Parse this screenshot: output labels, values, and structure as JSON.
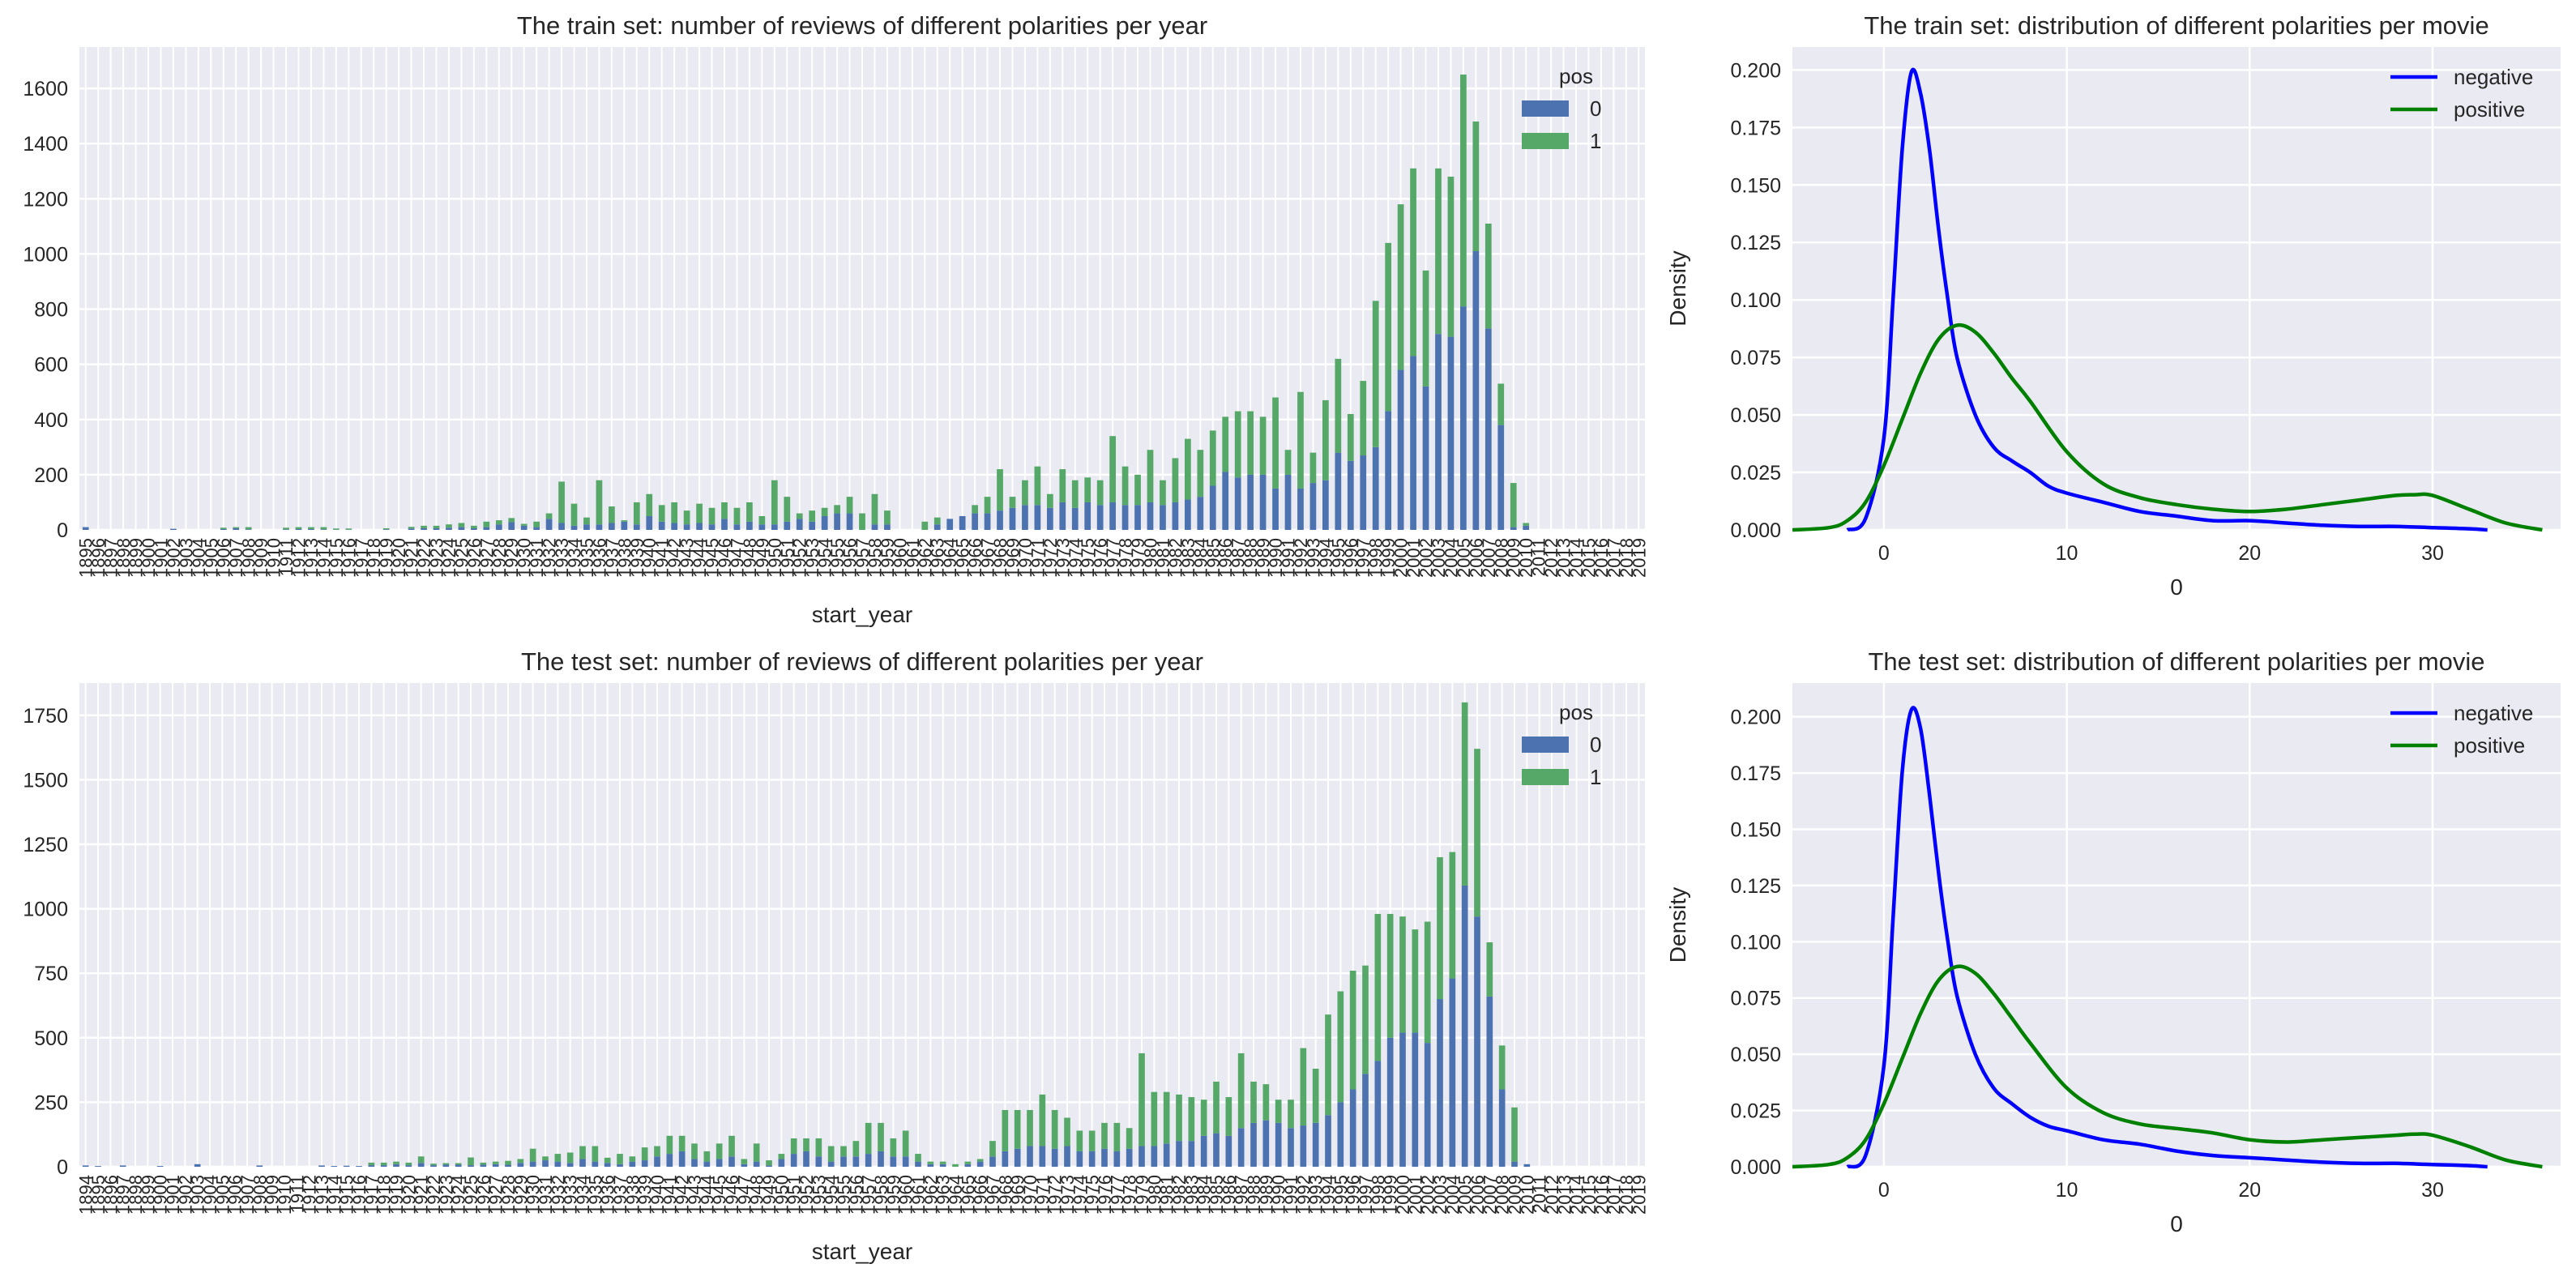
{
  "colors": {
    "neg_bar": "#4c72b0",
    "pos_bar": "#55a868",
    "neg_line": "#0000ff",
    "pos_line": "#008000",
    "panel_bg": "#eaeaf2",
    "grid": "#ffffff"
  },
  "chart_data": [
    {
      "type": "bar",
      "stacked": true,
      "title": "The train set: number of reviews of different polarities per year",
      "xlabel": "start_year",
      "ylabel": "",
      "ylim": [
        0,
        1750
      ],
      "yticks": [
        0,
        200,
        400,
        600,
        800,
        1000,
        1200,
        1400,
        1600
      ],
      "legend": {
        "title": "pos",
        "position": "top-right",
        "labels": [
          "0",
          "1"
        ]
      },
      "grid": true,
      "categories": [
        "1895",
        "1896",
        "1897",
        "1898",
        "1899",
        "1900",
        "1901",
        "1902",
        "1903",
        "1904",
        "1905",
        "1906",
        "1907",
        "1908",
        "1909",
        "1910",
        "1911",
        "1912",
        "1913",
        "1914",
        "1915",
        "1916",
        "1917",
        "1918",
        "1919",
        "1920",
        "1921",
        "1922",
        "1923",
        "1924",
        "1925",
        "1926",
        "1927",
        "1928",
        "1929",
        "1930",
        "1931",
        "1932",
        "1933",
        "1934",
        "1935",
        "1936",
        "1937",
        "1938",
        "1939",
        "1940",
        "1941",
        "1942",
        "1943",
        "1944",
        "1945",
        "1946",
        "1947",
        "1948",
        "1949",
        "1950",
        "1951",
        "1952",
        "1953",
        "1954",
        "1955",
        "1956",
        "1957",
        "1958",
        "1959",
        "1960",
        "1961",
        "1962",
        "1963",
        "1964",
        "1965",
        "1966",
        "1967",
        "1968",
        "1969",
        "1970",
        "1971",
        "1972",
        "1973",
        "1974",
        "1975",
        "1976",
        "1977",
        "1978",
        "1979",
        "1980",
        "1981",
        "1982",
        "1983",
        "1984",
        "1985",
        "1986",
        "1987",
        "1988",
        "1989",
        "1990",
        "1991",
        "1992",
        "1993",
        "1994",
        "1995",
        "1996",
        "1997",
        "1998",
        "1999",
        "2000",
        "2001",
        "2002",
        "2003",
        "2004",
        "2005",
        "2006",
        "2007",
        "2008",
        "2009",
        "2010",
        "2011",
        "2012",
        "2013",
        "2014",
        "2015",
        "2016",
        "2017",
        "2018",
        "2019"
      ],
      "series": [
        {
          "name": "0",
          "values": [
            10,
            0,
            0,
            0,
            0,
            0,
            0,
            4,
            0,
            0,
            0,
            3,
            6,
            2,
            0,
            0,
            2,
            3,
            3,
            2,
            1,
            1,
            0,
            0,
            2,
            0,
            5,
            6,
            6,
            8,
            10,
            6,
            10,
            20,
            28,
            15,
            10,
            40,
            25,
            15,
            20,
            20,
            25,
            30,
            20,
            50,
            30,
            25,
            20,
            25,
            20,
            40,
            20,
            30,
            20,
            20,
            30,
            40,
            30,
            50,
            60,
            60,
            0,
            20,
            20,
            0,
            0,
            0,
            20,
            40,
            50,
            60,
            60,
            70,
            80,
            90,
            90,
            80,
            100,
            80,
            100,
            90,
            100,
            90,
            90,
            100,
            90,
            100,
            110,
            120,
            160,
            210,
            190,
            200,
            200,
            150,
            200,
            150,
            170,
            180,
            280,
            250,
            270,
            300,
            430,
            580,
            630,
            520,
            710,
            700,
            810,
            1010,
            730,
            380,
            10,
            15,
            0,
            0,
            0,
            0,
            0,
            0,
            0,
            0,
            0
          ]
        },
        {
          "name": "1",
          "values": [
            0,
            0,
            0,
            0,
            0,
            0,
            0,
            0,
            0,
            0,
            0,
            5,
            4,
            8,
            0,
            0,
            6,
            7,
            7,
            8,
            4,
            4,
            0,
            0,
            4,
            0,
            6,
            9,
            9,
            12,
            15,
            9,
            20,
            15,
            15,
            7,
            20,
            20,
            150,
            80,
            25,
            160,
            60,
            5,
            80,
            80,
            60,
            75,
            50,
            70,
            60,
            60,
            60,
            70,
            30,
            160,
            90,
            20,
            40,
            30,
            30,
            60,
            60,
            110,
            50,
            0,
            0,
            30,
            25,
            0,
            0,
            30,
            60,
            150,
            40,
            90,
            140,
            50,
            120,
            100,
            90,
            90,
            240,
            140,
            110,
            190,
            90,
            160,
            220,
            170,
            200,
            200,
            240,
            230,
            210,
            330,
            90,
            350,
            110,
            290,
            340,
            170,
            270,
            530,
            610,
            600,
            680,
            420,
            600,
            580,
            840,
            470,
            380,
            150,
            160,
            10,
            0,
            0,
            0,
            0,
            0,
            0,
            0,
            0,
            0
          ]
        }
      ]
    },
    {
      "type": "line",
      "title": "The train set: distribution of different polarities per movie",
      "xlabel": "0",
      "ylabel": "Density",
      "xlim": [
        -5,
        37
      ],
      "ylim": [
        0,
        0.21
      ],
      "xticks": [
        0,
        10,
        20,
        30
      ],
      "yticks": [
        "0.000",
        "0.025",
        "0.050",
        "0.075",
        "0.100",
        "0.125",
        "0.150",
        "0.175",
        "0.200"
      ],
      "legend": {
        "position": "top-right",
        "labels": [
          "negative",
          "positive"
        ]
      },
      "grid": true,
      "series": [
        {
          "name": "negative",
          "x": [
            -2,
            -1,
            0,
            0.5,
            1,
            1.5,
            2,
            2.5,
            3,
            3.5,
            4,
            5,
            6,
            7,
            8,
            9,
            10,
            12,
            14,
            16,
            18,
            20,
            22,
            24,
            26,
            28,
            30,
            32,
            33
          ],
          "y": [
            0,
            0.005,
            0.04,
            0.1,
            0.165,
            0.199,
            0.19,
            0.165,
            0.13,
            0.1,
            0.075,
            0.05,
            0.036,
            0.03,
            0.025,
            0.019,
            0.016,
            0.012,
            0.008,
            0.006,
            0.004,
            0.004,
            0.003,
            0.002,
            0.0015,
            0.0015,
            0.001,
            0.0005,
            0
          ]
        },
        {
          "name": "positive",
          "x": [
            -5,
            -3,
            -2,
            -1,
            0,
            1,
            2,
            3,
            4,
            5,
            6,
            7,
            8,
            10,
            12,
            14,
            16,
            18,
            20,
            22,
            24,
            26,
            28,
            29,
            30,
            32,
            34,
            36
          ],
          "y": [
            0,
            0.001,
            0.004,
            0.012,
            0.028,
            0.048,
            0.068,
            0.083,
            0.089,
            0.086,
            0.077,
            0.066,
            0.056,
            0.034,
            0.02,
            0.014,
            0.011,
            0.009,
            0.008,
            0.009,
            0.011,
            0.013,
            0.015,
            0.0153,
            0.015,
            0.009,
            0.003,
            0
          ]
        }
      ]
    },
    {
      "type": "bar",
      "stacked": true,
      "title": "The test set: number of reviews of different polarities per year",
      "xlabel": "start_year",
      "ylabel": "",
      "ylim": [
        0,
        1875
      ],
      "yticks": [
        0,
        250,
        500,
        750,
        1000,
        1250,
        1500,
        1750
      ],
      "legend": {
        "title": "pos",
        "position": "top-right",
        "labels": [
          "0",
          "1"
        ]
      },
      "grid": true,
      "categories": [
        "1894",
        "1895",
        "1896",
        "1897",
        "1898",
        "1899",
        "1900",
        "1901",
        "1902",
        "1903",
        "1904",
        "1905",
        "1906",
        "1907",
        "1908",
        "1909",
        "1910",
        "1911",
        "1912",
        "1913",
        "1914",
        "1915",
        "1916",
        "1917",
        "1918",
        "1919",
        "1920",
        "1921",
        "1922",
        "1923",
        "1924",
        "1925",
        "1926",
        "1927",
        "1928",
        "1929",
        "1930",
        "1931",
        "1932",
        "1933",
        "1934",
        "1935",
        "1936",
        "1937",
        "1938",
        "1939",
        "1940",
        "1941",
        "1942",
        "1943",
        "1944",
        "1945",
        "1946",
        "1947",
        "1948",
        "1949",
        "1950",
        "1951",
        "1952",
        "1953",
        "1954",
        "1955",
        "1956",
        "1957",
        "1958",
        "1959",
        "1960",
        "1961",
        "1962",
        "1963",
        "1964",
        "1965",
        "1966",
        "1967",
        "1968",
        "1969",
        "1970",
        "1971",
        "1972",
        "1973",
        "1974",
        "1975",
        "1976",
        "1977",
        "1978",
        "1979",
        "1980",
        "1981",
        "1982",
        "1983",
        "1984",
        "1985",
        "1986",
        "1987",
        "1988",
        "1989",
        "1990",
        "1991",
        "1992",
        "1993",
        "1994",
        "1995",
        "1996",
        "1997",
        "1998",
        "1999",
        "2000",
        "2001",
        "2002",
        "2003",
        "2004",
        "2005",
        "2006",
        "2007",
        "2008",
        "2009",
        "2010",
        "2011",
        "2012",
        "2013",
        "2014",
        "2015",
        "2016",
        "2017",
        "2018",
        "2019"
      ],
      "series": [
        {
          "name": "0",
          "values": [
            5,
            3,
            0,
            5,
            0,
            0,
            3,
            0,
            0,
            10,
            0,
            0,
            0,
            0,
            5,
            0,
            0,
            0,
            0,
            5,
            3,
            4,
            3,
            6,
            6,
            10,
            6,
            15,
            6,
            8,
            8,
            6,
            8,
            10,
            8,
            15,
            20,
            25,
            20,
            15,
            30,
            20,
            15,
            10,
            20,
            25,
            40,
            50,
            60,
            30,
            20,
            30,
            40,
            10,
            20,
            5,
            30,
            50,
            60,
            40,
            20,
            40,
            40,
            50,
            60,
            40,
            40,
            20,
            10,
            10,
            0,
            10,
            20,
            40,
            60,
            70,
            80,
            80,
            70,
            80,
            60,
            60,
            70,
            60,
            70,
            80,
            80,
            90,
            100,
            100,
            120,
            130,
            120,
            150,
            170,
            180,
            170,
            150,
            160,
            170,
            200,
            250,
            300,
            360,
            410,
            500,
            520,
            520,
            480,
            650,
            730,
            1090,
            970,
            660,
            300,
            20,
            10,
            0,
            0,
            0,
            0,
            0,
            0,
            0,
            0,
            0
          ]
        },
        {
          "name": "1",
          "values": [
            0,
            0,
            0,
            0,
            0,
            0,
            0,
            0,
            0,
            0,
            0,
            0,
            0,
            0,
            0,
            0,
            0,
            0,
            0,
            0,
            0,
            0,
            0,
            10,
            10,
            10,
            10,
            25,
            6,
            6,
            6,
            30,
            8,
            10,
            15,
            15,
            50,
            15,
            30,
            40,
            50,
            60,
            20,
            40,
            20,
            50,
            40,
            70,
            60,
            60,
            40,
            60,
            80,
            20,
            70,
            20,
            20,
            60,
            50,
            70,
            60,
            40,
            60,
            120,
            110,
            70,
            100,
            30,
            10,
            10,
            10,
            10,
            10,
            60,
            160,
            150,
            140,
            200,
            150,
            110,
            80,
            80,
            100,
            110,
            80,
            360,
            210,
            200,
            180,
            170,
            140,
            200,
            150,
            290,
            160,
            140,
            90,
            110,
            300,
            210,
            390,
            430,
            460,
            420,
            570,
            480,
            450,
            400,
            470,
            550,
            490,
            710,
            650,
            210,
            170,
            210,
            0,
            0,
            0,
            0,
            0,
            0,
            0,
            0,
            0,
            0
          ]
        }
      ]
    },
    {
      "type": "line",
      "title": "The test set: distribution of different polarities per movie",
      "xlabel": "0",
      "ylabel": "Density",
      "xlim": [
        -5,
        37
      ],
      "ylim": [
        0,
        0.215
      ],
      "xticks": [
        0,
        10,
        20,
        30
      ],
      "yticks": [
        "0.000",
        "0.025",
        "0.050",
        "0.075",
        "0.100",
        "0.125",
        "0.150",
        "0.175",
        "0.200"
      ],
      "legend": {
        "position": "top-right",
        "labels": [
          "negative",
          "positive"
        ]
      },
      "grid": true,
      "series": [
        {
          "name": "negative",
          "x": [
            -2,
            -1,
            0,
            0.5,
            1,
            1.5,
            2,
            2.5,
            3,
            3.5,
            4,
            5,
            6,
            7,
            8,
            9,
            10,
            12,
            14,
            16,
            18,
            20,
            22,
            24,
            26,
            28,
            30,
            32,
            33
          ],
          "y": [
            0,
            0.005,
            0.045,
            0.11,
            0.175,
            0.203,
            0.195,
            0.165,
            0.13,
            0.1,
            0.076,
            0.05,
            0.035,
            0.028,
            0.022,
            0.018,
            0.016,
            0.012,
            0.01,
            0.007,
            0.005,
            0.004,
            0.003,
            0.002,
            0.0015,
            0.0015,
            0.001,
            0.0005,
            0
          ]
        },
        {
          "name": "positive",
          "x": [
            -5,
            -3,
            -2,
            -1,
            0,
            1,
            2,
            3,
            4,
            5,
            6,
            7,
            8,
            10,
            12,
            14,
            16,
            18,
            20,
            22,
            24,
            26,
            28,
            29,
            30,
            32,
            34,
            36
          ],
          "y": [
            0,
            0.001,
            0.004,
            0.012,
            0.028,
            0.048,
            0.068,
            0.083,
            0.089,
            0.086,
            0.077,
            0.066,
            0.055,
            0.035,
            0.024,
            0.019,
            0.017,
            0.015,
            0.012,
            0.011,
            0.012,
            0.013,
            0.014,
            0.0145,
            0.014,
            0.009,
            0.003,
            0
          ]
        }
      ]
    }
  ]
}
